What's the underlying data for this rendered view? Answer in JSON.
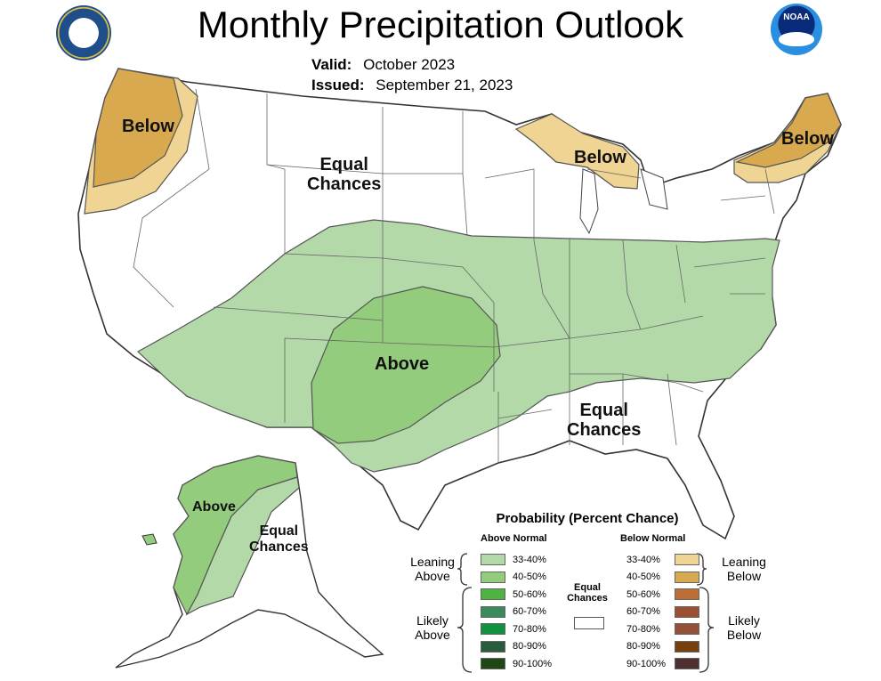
{
  "title": "Monthly Precipitation Outlook",
  "valid": {
    "label": "Valid:",
    "value": "October 2023"
  },
  "issued": {
    "label": "Issued:",
    "value": "September 21, 2023"
  },
  "map_labels": {
    "below_nw": "Below",
    "equal_north_1": "Equal",
    "equal_north_2": "Chances",
    "below_greatlakes": "Below",
    "below_ne": "Below",
    "above_central": "Above",
    "equal_se_1": "Equal",
    "equal_se_2": "Chances",
    "alaska_above": "Above",
    "alaska_equal_1": "Equal",
    "alaska_equal_2": "Chances"
  },
  "legend": {
    "title": "Probability (Percent Chance)",
    "above_header": "Above Normal",
    "below_header": "Below Normal",
    "equal_1": "Equal",
    "equal_2": "Chances",
    "leaning_above_1": "Leaning",
    "leaning_above_2": "Above",
    "likely_above_1": "Likely",
    "likely_above_2": "Above",
    "leaning_below_1": "Leaning",
    "leaning_below_2": "Below",
    "likely_below_1": "Likely",
    "likely_below_2": "Below",
    "above": [
      {
        "label": "33-40%",
        "color": "#b3d9a9"
      },
      {
        "label": "40-50%",
        "color": "#94cc7e"
      },
      {
        "label": "50-60%",
        "color": "#4fb342"
      },
      {
        "label": "60-70%",
        "color": "#3a8a5c"
      },
      {
        "label": "70-80%",
        "color": "#10923e"
      },
      {
        "label": "80-90%",
        "color": "#285c3c"
      },
      {
        "label": "90-100%",
        "color": "#1f4716"
      }
    ],
    "below": [
      {
        "label": "33-40%",
        "color": "#f0d493"
      },
      {
        "label": "40-50%",
        "color": "#d8a94f"
      },
      {
        "label": "50-60%",
        "color": "#bb6e36"
      },
      {
        "label": "60-70%",
        "color": "#9b5031"
      },
      {
        "label": "70-80%",
        "color": "#93513a"
      },
      {
        "label": "80-90%",
        "color": "#78400d"
      },
      {
        "label": "90-100%",
        "color": "#4d302f"
      }
    ]
  },
  "colors": {
    "land": "#ffffff",
    "border": "#555555",
    "coast": "#333333"
  },
  "logos": {
    "left": "commerce-seal-icon",
    "right": "noaa-logo-icon"
  }
}
